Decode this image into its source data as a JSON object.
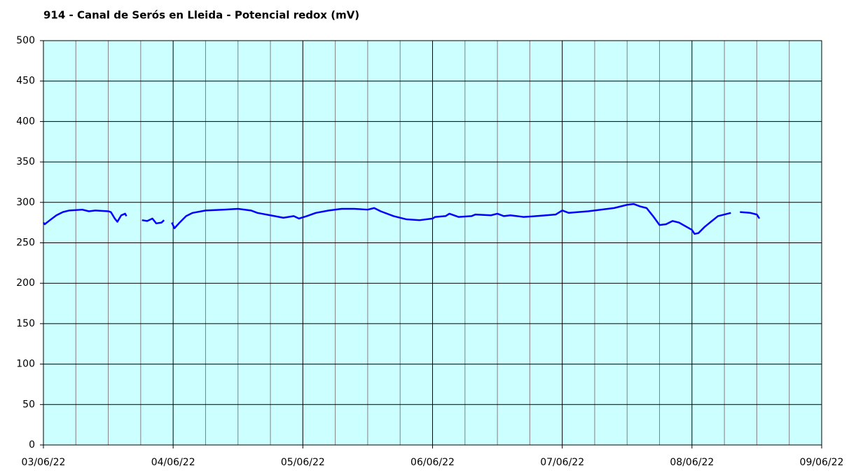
{
  "chart_data": {
    "type": "line",
    "title": "914 - Canal de Serós en Lleida - Potencial redox (mV)",
    "x": [
      0,
      0.01,
      0.05,
      0.1,
      0.15,
      0.2,
      0.3,
      0.35,
      0.4,
      0.5,
      0.52,
      0.55,
      0.57,
      0.6,
      0.63,
      0.64,
      0.7,
      0.76,
      0.8,
      0.84,
      0.87,
      0.91,
      0.93,
      0.96,
      0.99,
      1.01,
      1.05,
      1.1,
      1.15,
      1.25,
      1.4,
      1.5,
      1.6,
      1.65,
      1.75,
      1.85,
      1.93,
      1.97,
      2.03,
      2.1,
      2.2,
      2.3,
      2.4,
      2.5,
      2.55,
      2.6,
      2.7,
      2.8,
      2.9,
      3.0,
      3.02,
      3.1,
      3.13,
      3.2,
      3.3,
      3.33,
      3.45,
      3.5,
      3.55,
      3.6,
      3.65,
      3.7,
      3.8,
      3.95,
      4.0,
      4.05,
      4.2,
      4.4,
      4.5,
      4.55,
      4.6,
      4.65,
      4.7,
      4.75,
      4.8,
      4.85,
      4.9,
      5.0,
      5.02,
      5.05,
      5.1,
      5.2,
      5.3,
      5.33,
      5.37,
      5.45,
      5.5,
      5.52
    ],
    "series": [
      {
        "name": "Potencial redox",
        "color": "#0000ff",
        "values": [
          275,
          273,
          278,
          284,
          288,
          290,
          291,
          289,
          290,
          289,
          288,
          280,
          276,
          284,
          286,
          283,
          null,
          278,
          277,
          280,
          274,
          275,
          278,
          null,
          275,
          268,
          275,
          283,
          287,
          290,
          291,
          292,
          290,
          287,
          284,
          281,
          283,
          280,
          283,
          287,
          290,
          292,
          292,
          291,
          293,
          289,
          283,
          279,
          278,
          280,
          282,
          283,
          286,
          282,
          283,
          285,
          284,
          286,
          283,
          284,
          283,
          282,
          283,
          285,
          290,
          287,
          289,
          293,
          297,
          298,
          295,
          293,
          283,
          272,
          273,
          277,
          275,
          266,
          261,
          262,
          270,
          283,
          287,
          null,
          288,
          287,
          285,
          280
        ]
      }
    ],
    "xlim": [
      0,
      6
    ],
    "xticks": [
      {
        "value": 0,
        "label": "03/06/22"
      },
      {
        "value": 1,
        "label": "04/06/22"
      },
      {
        "value": 2,
        "label": "05/06/22"
      },
      {
        "value": 3,
        "label": "06/06/22"
      },
      {
        "value": 4,
        "label": "07/06/22"
      },
      {
        "value": 5,
        "label": "08/06/22"
      },
      {
        "value": 6,
        "label": "09/06/22"
      }
    ],
    "x_minor_ticks": [
      0.25,
      0.5,
      0.75,
      1.25,
      1.5,
      1.75,
      2.25,
      2.5,
      2.75,
      3.25,
      3.5,
      3.75,
      4.25,
      4.5,
      4.75,
      5.25,
      5.5,
      5.75
    ],
    "ylim": [
      0,
      500
    ],
    "yticks": [
      0,
      50,
      100,
      150,
      200,
      250,
      300,
      350,
      400,
      450,
      500
    ],
    "grid": true,
    "background": "#ccffff"
  }
}
